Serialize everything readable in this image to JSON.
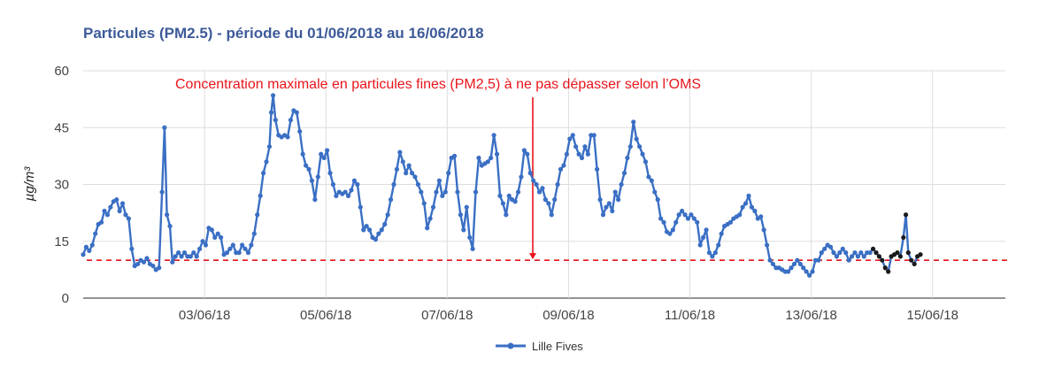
{
  "chart_data": {
    "type": "line",
    "title": "Particules (PM2.5) - période du 01/06/2018 au 16/06/2018",
    "xlabel": "",
    "ylabel": "µg/m³",
    "ylim": [
      0,
      60
    ],
    "yticks": [
      "0",
      "15",
      "30",
      "45",
      "60"
    ],
    "xticks": [
      {
        "day": 3,
        "label": "03/06/18"
      },
      {
        "day": 5,
        "label": "05/06/18"
      },
      {
        "day": 7,
        "label": "07/06/18"
      },
      {
        "day": 9,
        "label": "09/06/18"
      },
      {
        "day": 11,
        "label": "11/06/18"
      },
      {
        "day": 13,
        "label": "13/06/18"
      },
      {
        "day": 15,
        "label": "15/06/18"
      }
    ],
    "x_range_days": [
      1,
      16.2
    ],
    "grid": true,
    "legend_position": "bottom",
    "annotation": {
      "text": "Concentration maximale en particules fines (PM2,5) à ne pas dépasser selon l’OMS",
      "threshold": 10,
      "color": "#e8141b"
    },
    "series": [
      {
        "name": "Lille Fives",
        "color": "#3a6fc4",
        "points": [
          [
            1.0,
            11.5
          ],
          [
            1.05,
            13.5
          ],
          [
            1.1,
            12.5
          ],
          [
            1.15,
            14
          ],
          [
            1.2,
            17
          ],
          [
            1.25,
            19.5
          ],
          [
            1.3,
            20
          ],
          [
            1.35,
            23
          ],
          [
            1.4,
            22
          ],
          [
            1.45,
            24
          ],
          [
            1.5,
            25.5
          ],
          [
            1.55,
            26
          ],
          [
            1.6,
            23
          ],
          [
            1.65,
            25
          ],
          [
            1.7,
            22
          ],
          [
            1.75,
            21
          ],
          [
            1.8,
            13
          ],
          [
            1.85,
            8.5
          ],
          [
            1.9,
            9
          ],
          [
            1.95,
            10
          ],
          [
            2.0,
            9.5
          ],
          [
            2.05,
            10.5
          ],
          [
            2.1,
            9
          ],
          [
            2.15,
            8.5
          ],
          [
            2.2,
            7.5
          ],
          [
            2.25,
            8
          ],
          [
            2.3,
            28
          ],
          [
            2.34,
            45
          ],
          [
            2.38,
            22
          ],
          [
            2.43,
            19
          ],
          [
            2.47,
            9.5
          ],
          [
            2.52,
            11
          ],
          [
            2.57,
            12
          ],
          [
            2.62,
            11
          ],
          [
            2.67,
            12
          ],
          [
            2.72,
            11
          ],
          [
            2.77,
            11
          ],
          [
            2.82,
            12
          ],
          [
            2.87,
            11
          ],
          [
            2.92,
            13
          ],
          [
            2.97,
            15
          ],
          [
            3.02,
            14
          ],
          [
            3.07,
            18.5
          ],
          [
            3.12,
            18
          ],
          [
            3.17,
            16
          ],
          [
            3.22,
            17
          ],
          [
            3.27,
            16
          ],
          [
            3.32,
            11.5
          ],
          [
            3.37,
            12
          ],
          [
            3.42,
            13
          ],
          [
            3.47,
            14
          ],
          [
            3.52,
            12
          ],
          [
            3.57,
            12
          ],
          [
            3.62,
            14
          ],
          [
            3.67,
            13
          ],
          [
            3.72,
            12
          ],
          [
            3.77,
            14
          ],
          [
            3.82,
            17
          ],
          [
            3.87,
            22
          ],
          [
            3.92,
            27
          ],
          [
            3.97,
            33
          ],
          [
            4.02,
            36
          ],
          [
            4.07,
            40
          ],
          [
            4.1,
            49
          ],
          [
            4.13,
            53.5
          ],
          [
            4.17,
            47
          ],
          [
            4.22,
            43
          ],
          [
            4.27,
            42.5
          ],
          [
            4.32,
            43
          ],
          [
            4.37,
            42.5
          ],
          [
            4.42,
            47
          ],
          [
            4.47,
            49.5
          ],
          [
            4.52,
            49
          ],
          [
            4.57,
            44
          ],
          [
            4.62,
            38
          ],
          [
            4.67,
            35
          ],
          [
            4.72,
            34
          ],
          [
            4.77,
            31
          ],
          [
            4.82,
            26
          ],
          [
            4.87,
            32
          ],
          [
            4.92,
            38
          ],
          [
            4.97,
            37
          ],
          [
            5.02,
            39
          ],
          [
            5.07,
            33
          ],
          [
            5.12,
            30
          ],
          [
            5.17,
            27
          ],
          [
            5.22,
            28
          ],
          [
            5.27,
            27.5
          ],
          [
            5.32,
            28
          ],
          [
            5.37,
            27
          ],
          [
            5.42,
            28.5
          ],
          [
            5.47,
            31
          ],
          [
            5.52,
            30
          ],
          [
            5.57,
            24
          ],
          [
            5.62,
            18
          ],
          [
            5.67,
            19
          ],
          [
            5.72,
            18
          ],
          [
            5.77,
            16
          ],
          [
            5.82,
            15.5
          ],
          [
            5.87,
            17
          ],
          [
            5.92,
            18
          ],
          [
            5.97,
            19.5
          ],
          [
            6.02,
            22
          ],
          [
            6.07,
            26
          ],
          [
            6.12,
            30
          ],
          [
            6.17,
            34
          ],
          [
            6.22,
            38.5
          ],
          [
            6.27,
            36
          ],
          [
            6.32,
            33
          ],
          [
            6.37,
            35
          ],
          [
            6.42,
            33
          ],
          [
            6.47,
            32
          ],
          [
            6.52,
            30
          ],
          [
            6.57,
            28
          ],
          [
            6.62,
            25
          ],
          [
            6.67,
            18.5
          ],
          [
            6.72,
            21
          ],
          [
            6.77,
            24
          ],
          [
            6.82,
            28
          ],
          [
            6.87,
            31
          ],
          [
            6.92,
            27
          ],
          [
            6.97,
            28
          ],
          [
            7.02,
            33
          ],
          [
            7.07,
            37
          ],
          [
            7.12,
            37.5
          ],
          [
            7.17,
            28
          ],
          [
            7.22,
            22
          ],
          [
            7.27,
            18
          ],
          [
            7.32,
            24
          ],
          [
            7.37,
            16
          ],
          [
            7.42,
            13
          ],
          [
            7.47,
            28
          ],
          [
            7.52,
            37
          ],
          [
            7.57,
            35
          ],
          [
            7.62,
            35.5
          ],
          [
            7.67,
            36
          ],
          [
            7.72,
            37
          ],
          [
            7.77,
            43
          ],
          [
            7.82,
            38
          ],
          [
            7.87,
            27
          ],
          [
            7.92,
            25
          ],
          [
            7.97,
            22
          ],
          [
            8.02,
            27
          ],
          [
            8.07,
            26
          ],
          [
            8.12,
            25.5
          ],
          [
            8.17,
            28
          ],
          [
            8.22,
            32
          ],
          [
            8.27,
            39
          ],
          [
            8.32,
            38
          ],
          [
            8.37,
            33
          ],
          [
            8.42,
            31
          ],
          [
            8.47,
            30
          ],
          [
            8.52,
            28
          ],
          [
            8.57,
            29
          ],
          [
            8.62,
            26
          ],
          [
            8.67,
            25
          ],
          [
            8.72,
            22
          ],
          [
            8.77,
            26
          ],
          [
            8.82,
            30
          ],
          [
            8.87,
            34
          ],
          [
            8.92,
            35
          ],
          [
            8.97,
            38
          ],
          [
            9.02,
            42
          ],
          [
            9.07,
            43
          ],
          [
            9.12,
            40
          ],
          [
            9.17,
            38
          ],
          [
            9.22,
            37
          ],
          [
            9.27,
            40
          ],
          [
            9.32,
            38
          ],
          [
            9.37,
            43
          ],
          [
            9.42,
            43
          ],
          [
            9.47,
            34
          ],
          [
            9.52,
            26
          ],
          [
            9.57,
            22
          ],
          [
            9.62,
            24
          ],
          [
            9.67,
            25
          ],
          [
            9.72,
            23
          ],
          [
            9.77,
            28
          ],
          [
            9.82,
            26
          ],
          [
            9.87,
            30
          ],
          [
            9.92,
            33
          ],
          [
            9.97,
            37
          ],
          [
            10.02,
            40
          ],
          [
            10.07,
            46.5
          ],
          [
            10.12,
            42
          ],
          [
            10.17,
            40
          ],
          [
            10.22,
            38
          ],
          [
            10.27,
            36
          ],
          [
            10.32,
            32
          ],
          [
            10.37,
            31
          ],
          [
            10.42,
            28
          ],
          [
            10.47,
            26
          ],
          [
            10.52,
            21
          ],
          [
            10.57,
            20
          ],
          [
            10.62,
            17.5
          ],
          [
            10.67,
            17
          ],
          [
            10.72,
            18
          ],
          [
            10.77,
            20
          ],
          [
            10.82,
            22
          ],
          [
            10.87,
            23
          ],
          [
            10.92,
            22
          ],
          [
            10.97,
            21
          ],
          [
            11.02,
            22
          ],
          [
            11.07,
            21
          ],
          [
            11.12,
            20
          ],
          [
            11.17,
            14
          ],
          [
            11.22,
            16
          ],
          [
            11.27,
            18
          ],
          [
            11.32,
            12
          ],
          [
            11.37,
            11
          ],
          [
            11.42,
            12
          ],
          [
            11.47,
            14
          ],
          [
            11.52,
            17
          ],
          [
            11.57,
            19
          ],
          [
            11.62,
            19.5
          ],
          [
            11.67,
            20
          ],
          [
            11.72,
            21
          ],
          [
            11.77,
            21.5
          ],
          [
            11.82,
            22
          ],
          [
            11.87,
            24
          ],
          [
            11.92,
            25
          ],
          [
            11.97,
            27
          ],
          [
            12.02,
            24
          ],
          [
            12.07,
            23
          ],
          [
            12.12,
            21
          ],
          [
            12.17,
            21.5
          ],
          [
            12.22,
            18
          ],
          [
            12.27,
            14
          ],
          [
            12.32,
            10
          ],
          [
            12.37,
            9
          ],
          [
            12.42,
            8
          ],
          [
            12.47,
            8
          ],
          [
            12.52,
            7.5
          ],
          [
            12.57,
            7
          ],
          [
            12.62,
            7
          ],
          [
            12.67,
            8
          ],
          [
            12.72,
            9
          ],
          [
            12.77,
            10
          ],
          [
            12.82,
            9
          ],
          [
            12.87,
            8
          ],
          [
            12.92,
            7
          ],
          [
            12.97,
            6
          ],
          [
            13.02,
            7
          ],
          [
            13.07,
            10
          ],
          [
            13.12,
            10
          ],
          [
            13.17,
            12
          ],
          [
            13.22,
            13
          ],
          [
            13.27,
            14
          ],
          [
            13.32,
            13.5
          ],
          [
            13.37,
            12
          ],
          [
            13.42,
            11
          ],
          [
            13.47,
            12
          ],
          [
            13.52,
            13
          ],
          [
            13.57,
            12
          ],
          [
            13.62,
            10
          ],
          [
            13.67,
            11
          ],
          [
            13.72,
            12
          ],
          [
            13.77,
            11
          ],
          [
            13.82,
            12
          ],
          [
            13.87,
            11
          ],
          [
            13.92,
            12
          ],
          [
            13.97,
            12
          ],
          [
            14.02,
            13
          ],
          [
            14.07,
            12
          ],
          [
            14.12,
            11
          ],
          [
            14.17,
            10
          ],
          [
            14.22,
            8
          ],
          [
            14.27,
            7
          ],
          [
            14.32,
            11
          ],
          [
            14.37,
            11.5
          ],
          [
            14.42,
            12
          ],
          [
            14.47,
            11
          ],
          [
            14.52,
            16
          ],
          [
            14.56,
            22
          ],
          [
            14.6,
            12
          ],
          [
            14.65,
            10
          ],
          [
            14.7,
            9
          ],
          [
            14.75,
            11
          ],
          [
            14.8,
            11.5
          ]
        ]
      }
    ]
  }
}
